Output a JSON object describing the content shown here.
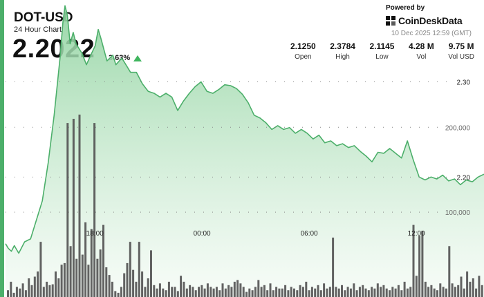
{
  "header": {
    "symbol": "DOT-USD",
    "subtitle": "24 Hour Chart",
    "price": "2.2022",
    "change_pct": "3.63%",
    "powered_by": "Powered by",
    "brand": "CoinDeskData",
    "timestamp": "10 Dec 2025 12:59 (GMT)"
  },
  "stats": [
    {
      "value": "2.1250",
      "label": "Open"
    },
    {
      "value": "2.3784",
      "label": "High"
    },
    {
      "value": "2.1145",
      "label": "Low"
    },
    {
      "value": "4.28 M",
      "label": "Vol"
    },
    {
      "value": "9.75 M",
      "label": "Vol USD"
    }
  ],
  "colors": {
    "line": "#4caf6a",
    "fill_top": "#8fd39f",
    "fill_bottom": "#f2faf3",
    "volume": "#555555",
    "accent": "#4caf6a",
    "up": "#3fb55e"
  },
  "chart_data": {
    "type": "area",
    "price_ylim": [
      2.074,
      2.386
    ],
    "volume_ylim": [
      0,
      350000
    ],
    "x_ticks": [
      {
        "label": "18:00",
        "x": 5
      },
      {
        "label": "00:00",
        "x": 11
      },
      {
        "label": "06:00",
        "x": 17
      },
      {
        "label": "12:00",
        "x": 23
      }
    ],
    "price_ticks": [
      {
        "label": "2.30",
        "value": 2.3
      },
      {
        "label": "2.20",
        "value": 2.2
      }
    ],
    "volume_ticks": [
      {
        "label": "200,000",
        "value": 200000
      },
      {
        "label": "100,000",
        "value": 100000
      }
    ],
    "series": [
      {
        "values": [
          [
            0.0,
            2.13
          ],
          [
            0.16,
            2.125
          ],
          [
            0.33,
            2.122
          ],
          [
            0.49,
            2.128
          ],
          [
            0.74,
            2.12
          ],
          [
            1.07,
            2.132
          ],
          [
            1.4,
            2.135
          ],
          [
            1.73,
            2.155
          ],
          [
            2.06,
            2.175
          ],
          [
            2.39,
            2.215
          ],
          [
            2.72,
            2.265
          ],
          [
            3.05,
            2.325
          ],
          [
            3.21,
            2.362
          ],
          [
            3.33,
            2.38
          ],
          [
            3.46,
            2.37
          ],
          [
            3.62,
            2.34
          ],
          [
            3.79,
            2.352
          ],
          [
            3.95,
            2.34
          ],
          [
            4.28,
            2.33
          ],
          [
            4.53,
            2.318
          ],
          [
            4.77,
            2.328
          ],
          [
            5.02,
            2.338
          ],
          [
            5.19,
            2.355
          ],
          [
            5.35,
            2.345
          ],
          [
            5.68,
            2.322
          ],
          [
            6.01,
            2.328
          ],
          [
            6.18,
            2.318
          ],
          [
            6.51,
            2.325
          ],
          [
            6.84,
            2.315
          ],
          [
            7.0,
            2.31
          ],
          [
            7.33,
            2.31
          ],
          [
            7.66,
            2.298
          ],
          [
            7.99,
            2.29
          ],
          [
            8.32,
            2.288
          ],
          [
            8.65,
            2.284
          ],
          [
            8.98,
            2.288
          ],
          [
            9.31,
            2.284
          ],
          [
            9.64,
            2.27
          ],
          [
            9.97,
            2.28
          ],
          [
            10.29,
            2.288
          ],
          [
            10.62,
            2.295
          ],
          [
            10.95,
            2.3
          ],
          [
            11.28,
            2.29
          ],
          [
            11.61,
            2.288
          ],
          [
            11.94,
            2.292
          ],
          [
            12.27,
            2.297
          ],
          [
            12.6,
            2.296
          ],
          [
            12.93,
            2.293
          ],
          [
            13.26,
            2.287
          ],
          [
            13.59,
            2.278
          ],
          [
            13.92,
            2.265
          ],
          [
            14.25,
            2.262
          ],
          [
            14.58,
            2.257
          ],
          [
            14.91,
            2.25
          ],
          [
            15.24,
            2.254
          ],
          [
            15.57,
            2.25
          ],
          [
            15.9,
            2.252
          ],
          [
            16.23,
            2.246
          ],
          [
            16.56,
            2.25
          ],
          [
            16.89,
            2.246
          ],
          [
            17.22,
            2.24
          ],
          [
            17.55,
            2.244
          ],
          [
            17.88,
            2.236
          ],
          [
            18.21,
            2.238
          ],
          [
            18.54,
            2.233
          ],
          [
            18.87,
            2.235
          ],
          [
            19.2,
            2.231
          ],
          [
            19.53,
            2.233
          ],
          [
            19.86,
            2.227
          ],
          [
            20.19,
            2.222
          ],
          [
            20.52,
            2.216
          ],
          [
            20.85,
            2.226
          ],
          [
            21.18,
            2.225
          ],
          [
            21.51,
            2.23
          ],
          [
            21.84,
            2.225
          ],
          [
            22.17,
            2.22
          ],
          [
            22.5,
            2.238
          ],
          [
            22.83,
            2.218
          ],
          [
            23.16,
            2.2
          ],
          [
            23.49,
            2.197
          ],
          [
            23.82,
            2.2
          ],
          [
            24.15,
            2.198
          ],
          [
            24.48,
            2.202
          ],
          [
            24.81,
            2.196
          ],
          [
            25.14,
            2.198
          ],
          [
            25.47,
            2.192
          ],
          [
            25.8,
            2.197
          ],
          [
            26.13,
            2.195
          ],
          [
            26.46,
            2.2
          ],
          [
            26.79,
            2.203
          ]
        ]
      },
      {
        "values": [
          8000,
          18000,
          5000,
          12000,
          10000,
          16000,
          8000,
          22000,
          14000,
          24000,
          30000,
          65000,
          12000,
          18000,
          14000,
          15000,
          30000,
          22000,
          38000,
          40000,
          205000,
          60000,
          210000,
          45000,
          215000,
          50000,
          88000,
          38000,
          80000,
          205000,
          45000,
          56000,
          85000,
          35000,
          26000,
          18000,
          7000,
          5000,
          12000,
          28000,
          40000,
          65000,
          32000,
          18000,
          65000,
          30000,
          12000,
          22000,
          55000,
          14000,
          10000,
          16000,
          10000,
          8000,
          18000,
          12000,
          12000,
          7000,
          25000,
          18000,
          10000,
          14000,
          12000,
          8000,
          12000,
          14000,
          10000,
          16000,
          12000,
          10000,
          12000,
          8000,
          16000,
          10000,
          14000,
          12000,
          18000,
          20000,
          16000,
          12000,
          6000,
          10000,
          8000,
          12000,
          20000,
          12000,
          14000,
          8000,
          16000,
          8000,
          12000,
          10000,
          10000,
          14000,
          8000,
          12000,
          10000,
          8000,
          14000,
          12000,
          18000,
          8000,
          12000,
          10000,
          14000,
          8000,
          16000,
          10000,
          12000,
          70000,
          12000,
          10000,
          14000,
          8000,
          12000,
          10000,
          16000,
          8000,
          12000,
          14000,
          10000,
          8000,
          12000,
          10000,
          16000,
          12000,
          14000,
          10000,
          8000,
          12000,
          10000,
          14000,
          8000,
          18000,
          10000,
          12000,
          85000,
          25000,
          72000,
          78000,
          18000,
          12000,
          14000,
          10000,
          8000,
          16000,
          12000,
          10000,
          60000,
          16000,
          12000,
          14000,
          24000,
          10000,
          30000,
          18000,
          22000,
          10000,
          25000,
          14000
        ]
      }
    ]
  }
}
